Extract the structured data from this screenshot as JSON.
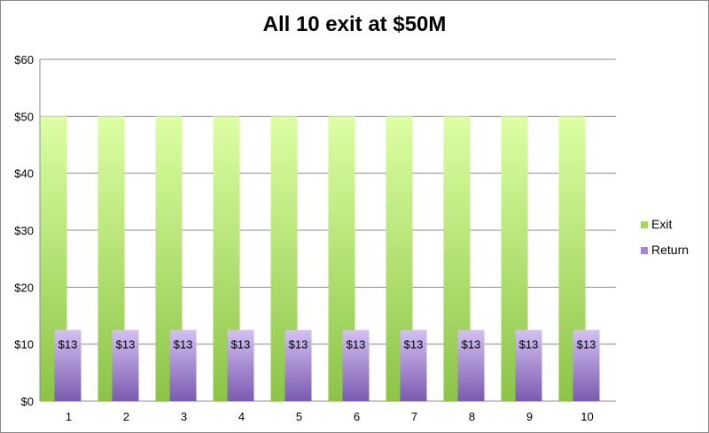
{
  "chart_data": {
    "type": "bar",
    "title": "All 10 exit at $50M",
    "xlabel": "",
    "ylabel": "",
    "categories": [
      "1",
      "2",
      "3",
      "4",
      "5",
      "6",
      "7",
      "8",
      "9",
      "10"
    ],
    "series": [
      {
        "name": "Exit",
        "values": [
          50,
          50,
          50,
          50,
          50,
          50,
          50,
          50,
          50,
          50
        ],
        "color": "#a6d957"
      },
      {
        "name": "Return",
        "values": [
          12.5,
          12.5,
          12.5,
          12.5,
          12.5,
          12.5,
          12.5,
          12.5,
          12.5,
          12.5
        ],
        "color": "#a586d4",
        "data_labels": [
          "$13",
          "$13",
          "$13",
          "$13",
          "$13",
          "$13",
          "$13",
          "$13",
          "$13",
          "$13"
        ]
      }
    ],
    "ylim": [
      0,
      60
    ],
    "yticks": [
      0,
      10,
      20,
      30,
      40,
      50,
      60
    ],
    "ytick_labels": [
      "$0",
      "$10",
      "$20",
      "$30",
      "$40",
      "$50",
      "$60"
    ],
    "grid": true,
    "legend_position": "right"
  }
}
